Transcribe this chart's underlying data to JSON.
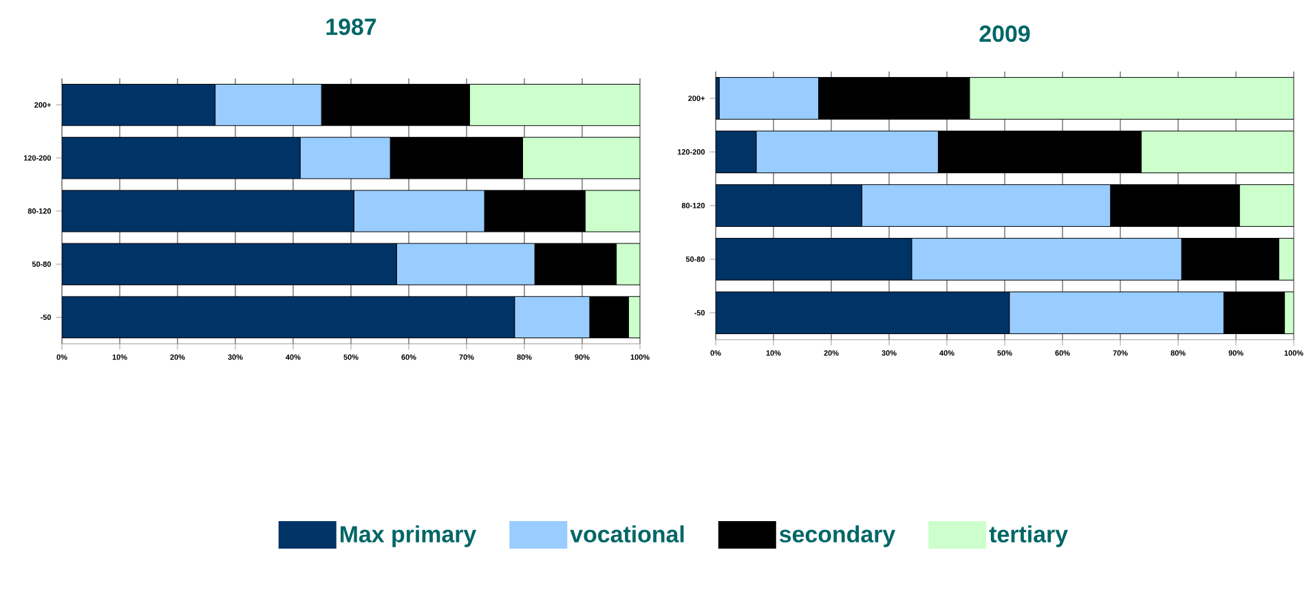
{
  "chart_data": [
    {
      "type": "bar",
      "orientation": "horizontal",
      "stacked": true,
      "title": "1987",
      "categories": [
        "200+",
        "120-200",
        "80-120",
        "50-80",
        "-50"
      ],
      "series": [
        {
          "name": "Max primary",
          "color": "#003366",
          "values": [
            26.5,
            41.2,
            50.5,
            57.9,
            78.3
          ]
        },
        {
          "name": "vocational",
          "color": "#99ccff",
          "values": [
            18.4,
            15.6,
            22.6,
            23.9,
            13.0
          ]
        },
        {
          "name": "secondary",
          "color": "#000000",
          "values": [
            25.6,
            22.9,
            17.4,
            14.1,
            6.7
          ]
        },
        {
          "name": "tertiary",
          "color": "#ccffcc",
          "values": [
            29.5,
            20.3,
            9.5,
            4.1,
            2.0
          ]
        }
      ],
      "xlim": [
        0,
        100
      ],
      "xticks": [
        {
          "value": 0,
          "label": "0%"
        },
        {
          "value": 10,
          "label": "10%"
        },
        {
          "value": 20,
          "label": "20%"
        },
        {
          "value": 30,
          "label": "30%"
        },
        {
          "value": 40,
          "label": "40%"
        },
        {
          "value": 50,
          "label": "50%"
        },
        {
          "value": 60,
          "label": "60%"
        },
        {
          "value": 70,
          "label": "70%"
        },
        {
          "value": 80,
          "label": "80%"
        },
        {
          "value": 90,
          "label": "90%"
        },
        {
          "value": 100,
          "label": "100%"
        }
      ],
      "grid": "x",
      "legend": "bottom"
    },
    {
      "type": "bar",
      "orientation": "horizontal",
      "stacked": true,
      "title": "2009",
      "categories": [
        "200+",
        "120-200",
        "80-120",
        "50-80",
        "-50"
      ],
      "series": [
        {
          "color": "#003366",
          "values": [
            0.6,
            7.0,
            25.3,
            33.9,
            50.8
          ]
        },
        {
          "color": "#99ccff",
          "values": [
            17.2,
            31.5,
            43.0,
            46.7,
            37.1
          ]
        },
        {
          "color": "#000000",
          "values": [
            26.1,
            35.1,
            22.3,
            16.8,
            10.5
          ]
        },
        {
          "color": "#ccffcc",
          "values": [
            56.1,
            26.4,
            9.4,
            2.6,
            1.6
          ]
        }
      ],
      "xlim": [
        0,
        100
      ],
      "xticks": [
        {
          "value": 0,
          "label": "0%"
        },
        {
          "value": 10,
          "label": "10%"
        },
        {
          "value": 20,
          "label": "20%"
        },
        {
          "value": 30,
          "label": "30%"
        },
        {
          "value": 40,
          "label": "40%"
        },
        {
          "value": 50,
          "label": "50%"
        },
        {
          "value": 60,
          "label": "60%"
        },
        {
          "value": 70,
          "label": "70%"
        },
        {
          "value": 80,
          "label": "80%"
        },
        {
          "value": 90,
          "label": "90%"
        },
        {
          "value": 100,
          "label": "100%"
        }
      ],
      "grid": "x"
    }
  ]
}
